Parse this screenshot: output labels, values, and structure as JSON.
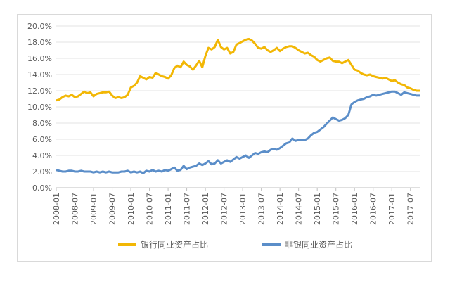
{
  "chart_data": {
    "type": "line",
    "title": "",
    "xlabel": "",
    "ylabel": "",
    "ylim": [
      0,
      20
    ],
    "yticks": [
      "0.0%",
      "2.0%",
      "4.0%",
      "6.0%",
      "8.0%",
      "10.0%",
      "12.0%",
      "14.0%",
      "16.0%",
      "18.0%",
      "20.0%"
    ],
    "x_tick_labels": [
      "2008-01",
      "2008-07",
      "2009-01",
      "2009-07",
      "2010-01",
      "2010-07",
      "2011-01",
      "2011-07",
      "2012-01",
      "2012-07",
      "2013-01",
      "2013-07",
      "2014-01",
      "2014-07",
      "2015-01",
      "2015-07",
      "2016-01",
      "2016-07",
      "2017-01",
      "2017-07"
    ],
    "grid": "horizontal",
    "legend_position": "bottom",
    "x_start": "2008-01",
    "x_end": "2017-10",
    "series": [
      {
        "name": "银行同业资产占比",
        "color": "#f2b705",
        "points": [
          [
            "2008-01",
            10.8
          ],
          [
            "2008-02",
            10.9
          ],
          [
            "2008-03",
            11.2
          ],
          [
            "2008-04",
            11.4
          ],
          [
            "2008-05",
            11.3
          ],
          [
            "2008-06",
            11.5
          ],
          [
            "2008-07",
            11.2
          ],
          [
            "2008-08",
            11.3
          ],
          [
            "2008-09",
            11.6
          ],
          [
            "2008-10",
            11.9
          ],
          [
            "2008-11",
            11.7
          ],
          [
            "2008-12",
            11.8
          ],
          [
            "2009-01",
            11.3
          ],
          [
            "2009-02",
            11.6
          ],
          [
            "2009-03",
            11.7
          ],
          [
            "2009-04",
            11.8
          ],
          [
            "2009-05",
            11.8
          ],
          [
            "2009-06",
            11.9
          ],
          [
            "2009-07",
            11.4
          ],
          [
            "2009-08",
            11.1
          ],
          [
            "2009-09",
            11.2
          ],
          [
            "2009-10",
            11.1
          ],
          [
            "2009-11",
            11.2
          ],
          [
            "2009-12",
            11.5
          ],
          [
            "2010-01",
            12.4
          ],
          [
            "2010-02",
            12.6
          ],
          [
            "2010-03",
            13.0
          ],
          [
            "2010-04",
            13.8
          ],
          [
            "2010-05",
            13.6
          ],
          [
            "2010-06",
            13.4
          ],
          [
            "2010-07",
            13.7
          ],
          [
            "2010-08",
            13.6
          ],
          [
            "2010-09",
            14.2
          ],
          [
            "2010-10",
            14.0
          ],
          [
            "2010-11",
            13.8
          ],
          [
            "2010-12",
            13.7
          ],
          [
            "2011-01",
            13.5
          ],
          [
            "2011-02",
            13.9
          ],
          [
            "2011-03",
            14.8
          ],
          [
            "2011-04",
            15.1
          ],
          [
            "2011-05",
            14.9
          ],
          [
            "2011-06",
            15.6
          ],
          [
            "2011-07",
            15.2
          ],
          [
            "2011-08",
            15.0
          ],
          [
            "2011-09",
            14.6
          ],
          [
            "2011-10",
            15.1
          ],
          [
            "2011-11",
            15.7
          ],
          [
            "2011-12",
            14.9
          ],
          [
            "2012-01",
            16.3
          ],
          [
            "2012-02",
            17.3
          ],
          [
            "2012-03",
            17.1
          ],
          [
            "2012-04",
            17.4
          ],
          [
            "2012-05",
            18.3
          ],
          [
            "2012-06",
            17.4
          ],
          [
            "2012-07",
            17.1
          ],
          [
            "2012-08",
            17.3
          ],
          [
            "2012-09",
            16.6
          ],
          [
            "2012-10",
            16.8
          ],
          [
            "2012-11",
            17.7
          ],
          [
            "2012-12",
            17.9
          ],
          [
            "2013-01",
            18.1
          ],
          [
            "2013-02",
            18.3
          ],
          [
            "2013-03",
            18.4
          ],
          [
            "2013-04",
            18.2
          ],
          [
            "2013-05",
            17.8
          ],
          [
            "2013-06",
            17.3
          ],
          [
            "2013-07",
            17.2
          ],
          [
            "2013-08",
            17.4
          ],
          [
            "2013-09",
            17.0
          ],
          [
            "2013-10",
            16.8
          ],
          [
            "2013-11",
            17.0
          ],
          [
            "2013-12",
            17.3
          ],
          [
            "2014-01",
            16.9
          ],
          [
            "2014-02",
            17.2
          ],
          [
            "2014-03",
            17.4
          ],
          [
            "2014-04",
            17.5
          ],
          [
            "2014-05",
            17.5
          ],
          [
            "2014-06",
            17.3
          ],
          [
            "2014-07",
            17.0
          ],
          [
            "2014-08",
            16.8
          ],
          [
            "2014-09",
            16.6
          ],
          [
            "2014-10",
            16.7
          ],
          [
            "2014-11",
            16.4
          ],
          [
            "2014-12",
            16.2
          ],
          [
            "2015-01",
            15.8
          ],
          [
            "2015-02",
            15.6
          ],
          [
            "2015-03",
            15.8
          ],
          [
            "2015-04",
            16.0
          ],
          [
            "2015-05",
            16.1
          ],
          [
            "2015-06",
            15.7
          ],
          [
            "2015-07",
            15.6
          ],
          [
            "2015-08",
            15.6
          ],
          [
            "2015-09",
            15.4
          ],
          [
            "2015-10",
            15.6
          ],
          [
            "2015-11",
            15.8
          ],
          [
            "2015-12",
            15.2
          ],
          [
            "2016-01",
            14.6
          ],
          [
            "2016-02",
            14.5
          ],
          [
            "2016-03",
            14.2
          ],
          [
            "2016-04",
            14.0
          ],
          [
            "2016-05",
            13.9
          ],
          [
            "2016-06",
            14.0
          ],
          [
            "2016-07",
            13.8
          ],
          [
            "2016-08",
            13.7
          ],
          [
            "2016-09",
            13.6
          ],
          [
            "2016-10",
            13.5
          ],
          [
            "2016-11",
            13.6
          ],
          [
            "2016-12",
            13.4
          ],
          [
            "2017-01",
            13.2
          ],
          [
            "2017-02",
            13.3
          ],
          [
            "2017-03",
            13.0
          ],
          [
            "2017-04",
            12.8
          ],
          [
            "2017-05",
            12.7
          ],
          [
            "2017-06",
            12.4
          ],
          [
            "2017-07",
            12.3
          ],
          [
            "2017-08",
            12.1
          ],
          [
            "2017-09",
            12.0
          ],
          [
            "2017-10",
            12.0
          ]
        ]
      },
      {
        "name": "非银同业资产占比",
        "color": "#5b8ec9",
        "points": [
          [
            "2008-01",
            2.2
          ],
          [
            "2008-02",
            2.1
          ],
          [
            "2008-03",
            2.0
          ],
          [
            "2008-04",
            2.0
          ],
          [
            "2008-05",
            2.1
          ],
          [
            "2008-06",
            2.1
          ],
          [
            "2008-07",
            2.0
          ],
          [
            "2008-08",
            2.0
          ],
          [
            "2008-09",
            2.1
          ],
          [
            "2008-10",
            2.0
          ],
          [
            "2008-11",
            2.0
          ],
          [
            "2008-12",
            2.0
          ],
          [
            "2009-01",
            1.9
          ],
          [
            "2009-02",
            2.0
          ],
          [
            "2009-03",
            1.9
          ],
          [
            "2009-04",
            2.0
          ],
          [
            "2009-05",
            1.9
          ],
          [
            "2009-06",
            2.0
          ],
          [
            "2009-07",
            1.9
          ],
          [
            "2009-08",
            1.9
          ],
          [
            "2009-09",
            1.9
          ],
          [
            "2009-10",
            2.0
          ],
          [
            "2009-11",
            2.0
          ],
          [
            "2009-12",
            2.1
          ],
          [
            "2010-01",
            1.9
          ],
          [
            "2010-02",
            2.0
          ],
          [
            "2010-03",
            1.9
          ],
          [
            "2010-04",
            2.0
          ],
          [
            "2010-05",
            1.8
          ],
          [
            "2010-06",
            2.1
          ],
          [
            "2010-07",
            2.0
          ],
          [
            "2010-08",
            2.2
          ],
          [
            "2010-09",
            2.0
          ],
          [
            "2010-10",
            2.1
          ],
          [
            "2010-11",
            2.0
          ],
          [
            "2010-12",
            2.2
          ],
          [
            "2011-01",
            2.1
          ],
          [
            "2011-02",
            2.3
          ],
          [
            "2011-03",
            2.5
          ],
          [
            "2011-04",
            2.1
          ],
          [
            "2011-05",
            2.2
          ],
          [
            "2011-06",
            2.7
          ],
          [
            "2011-07",
            2.3
          ],
          [
            "2011-08",
            2.5
          ],
          [
            "2011-09",
            2.6
          ],
          [
            "2011-10",
            2.7
          ],
          [
            "2011-11",
            3.0
          ],
          [
            "2011-12",
            2.8
          ],
          [
            "2012-01",
            3.0
          ],
          [
            "2012-02",
            3.3
          ],
          [
            "2012-03",
            2.9
          ],
          [
            "2012-04",
            3.0
          ],
          [
            "2012-05",
            3.4
          ],
          [
            "2012-06",
            3.0
          ],
          [
            "2012-07",
            3.2
          ],
          [
            "2012-08",
            3.4
          ],
          [
            "2012-09",
            3.2
          ],
          [
            "2012-10",
            3.5
          ],
          [
            "2012-11",
            3.8
          ],
          [
            "2012-12",
            3.6
          ],
          [
            "2013-01",
            3.8
          ],
          [
            "2013-02",
            4.0
          ],
          [
            "2013-03",
            3.7
          ],
          [
            "2013-04",
            4.0
          ],
          [
            "2013-05",
            4.3
          ],
          [
            "2013-06",
            4.2
          ],
          [
            "2013-07",
            4.4
          ],
          [
            "2013-08",
            4.5
          ],
          [
            "2013-09",
            4.4
          ],
          [
            "2013-10",
            4.7
          ],
          [
            "2013-11",
            4.8
          ],
          [
            "2013-12",
            4.7
          ],
          [
            "2014-01",
            4.9
          ],
          [
            "2014-02",
            5.2
          ],
          [
            "2014-03",
            5.5
          ],
          [
            "2014-04",
            5.6
          ],
          [
            "2014-05",
            6.1
          ],
          [
            "2014-06",
            5.8
          ],
          [
            "2014-07",
            5.9
          ],
          [
            "2014-08",
            5.9
          ],
          [
            "2014-09",
            5.9
          ],
          [
            "2014-10",
            6.1
          ],
          [
            "2014-11",
            6.5
          ],
          [
            "2014-12",
            6.8
          ],
          [
            "2015-01",
            6.9
          ],
          [
            "2015-02",
            7.2
          ],
          [
            "2015-03",
            7.5
          ],
          [
            "2015-04",
            7.9
          ],
          [
            "2015-05",
            8.3
          ],
          [
            "2015-06",
            8.7
          ],
          [
            "2015-07",
            8.5
          ],
          [
            "2015-08",
            8.3
          ],
          [
            "2015-09",
            8.4
          ],
          [
            "2015-10",
            8.6
          ],
          [
            "2015-11",
            9.0
          ],
          [
            "2015-12",
            10.3
          ],
          [
            "2016-01",
            10.6
          ],
          [
            "2016-02",
            10.8
          ],
          [
            "2016-03",
            10.9
          ],
          [
            "2016-04",
            11.0
          ],
          [
            "2016-05",
            11.2
          ],
          [
            "2016-06",
            11.3
          ],
          [
            "2016-07",
            11.5
          ],
          [
            "2016-08",
            11.4
          ],
          [
            "2016-09",
            11.5
          ],
          [
            "2016-10",
            11.6
          ],
          [
            "2016-11",
            11.7
          ],
          [
            "2016-12",
            11.8
          ],
          [
            "2017-01",
            11.9
          ],
          [
            "2017-02",
            11.9
          ],
          [
            "2017-03",
            11.7
          ],
          [
            "2017-04",
            11.5
          ],
          [
            "2017-05",
            11.8
          ],
          [
            "2017-06",
            11.7
          ],
          [
            "2017-07",
            11.6
          ],
          [
            "2017-08",
            11.5
          ],
          [
            "2017-09",
            11.4
          ],
          [
            "2017-10",
            11.4
          ]
        ]
      }
    ]
  }
}
